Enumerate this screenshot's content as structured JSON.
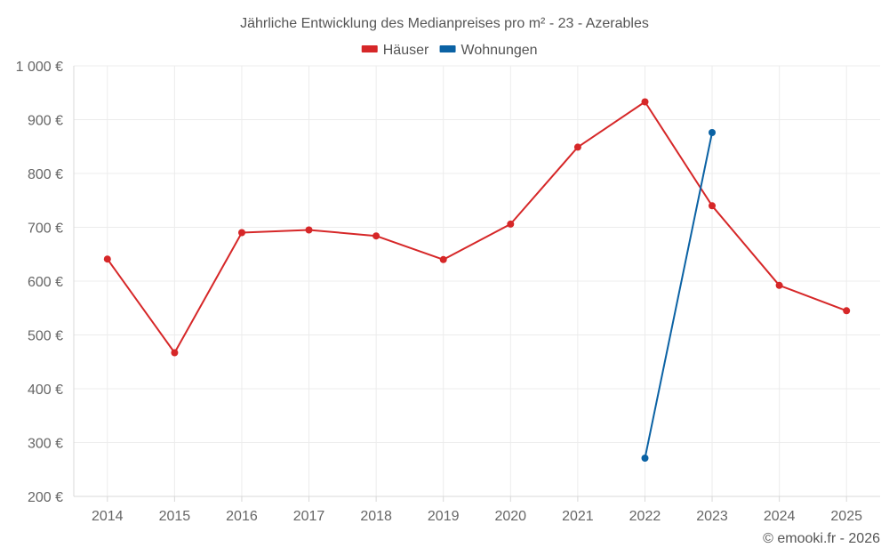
{
  "chart_data": {
    "type": "line",
    "title": "Jährliche Entwicklung des Medianpreises pro m² - 23 - Azerables",
    "x": [
      "2014",
      "2015",
      "2016",
      "2017",
      "2018",
      "2019",
      "2020",
      "2021",
      "2022",
      "2023",
      "2024",
      "2025"
    ],
    "y_ticks": [
      "200 €",
      "300 €",
      "400 €",
      "500 €",
      "600 €",
      "700 €",
      "800 €",
      "900 €",
      "1 000 €"
    ],
    "ylim": [
      200,
      1000
    ],
    "grid": true,
    "legend_position": "top-center",
    "series": [
      {
        "name": "Häuser",
        "color": "#d62728",
        "values": [
          641,
          467,
          690,
          695,
          684,
          640,
          706,
          849,
          933,
          740,
          592,
          545
        ]
      },
      {
        "name": "Wohnungen",
        "color": "#0b62a4",
        "values": [
          null,
          null,
          null,
          null,
          null,
          null,
          null,
          null,
          271,
          876,
          null,
          null
        ]
      }
    ],
    "credit": "© emooki.fr - 2026"
  }
}
